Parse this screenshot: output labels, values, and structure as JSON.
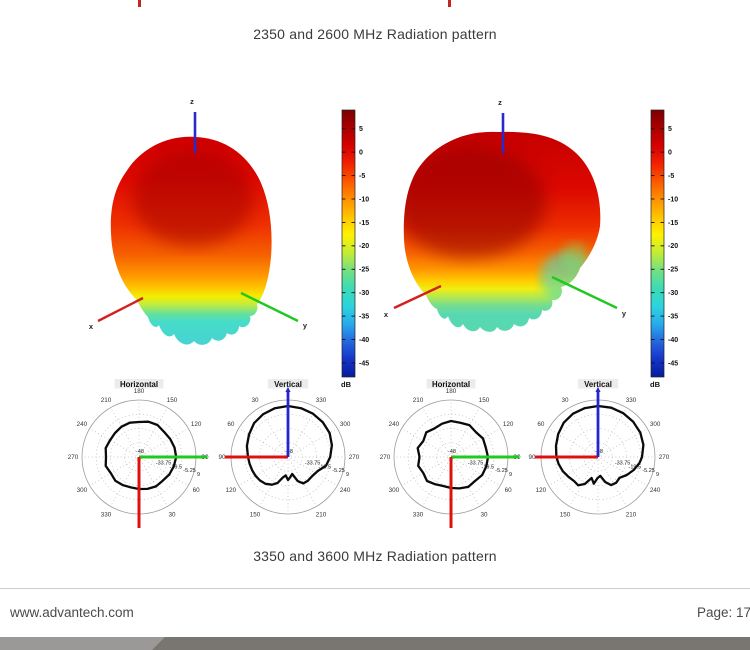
{
  "captions": {
    "top": "2350 and 2600 MHz Radiation pattern",
    "bottom": "3350 and 3600 MHz Radiation pattern"
  },
  "footer": {
    "website": "www.advantech.com",
    "page": "Page: 17"
  },
  "colors": {
    "tick_red": "#c42626",
    "bar_light": "#9b9998",
    "bar_dark": "#797671",
    "axis_x_red": "#d42020",
    "axis_y_green": "#22c822",
    "axis_z_blue": "#2a2ac8"
  },
  "chart_data": {
    "type": "radiation-pattern-figure",
    "surface_plots": [
      {
        "name": "3D radiation pattern left",
        "axis_labels": {
          "x": "x",
          "y": "y",
          "z": "z"
        }
      },
      {
        "name": "3D radiation pattern right",
        "axis_labels": {
          "x": "x",
          "y": "y",
          "z": "z"
        }
      }
    ],
    "colorbar": {
      "unit": "dB",
      "vmax": 9,
      "vmin": -48,
      "ticks": [
        5,
        0,
        -5,
        -10,
        -15,
        -20,
        -25,
        -30,
        -35,
        -40,
        -45
      ],
      "colors": [
        "#7c0000",
        "#aa0000",
        "#d60000",
        "#f22000",
        "#fb5800",
        "#ff9000",
        "#ffc400",
        "#fff200",
        "#c4ec34",
        "#74e080",
        "#3cdcb4",
        "#2cd4dc",
        "#28acec",
        "#2468dc",
        "#1634c8",
        "#041c9c"
      ]
    },
    "polar_plots": [
      {
        "title": "Horizontal",
        "orientation": "h",
        "rmin": -48,
        "rmax": 9,
        "rtick_labels": [
          "-48",
          "-33.75",
          "-19.5",
          "-5.25",
          "9"
        ],
        "angle_labels": [
          {
            "angle": 180,
            "label": "180"
          },
          {
            "angle": 150,
            "label": "150"
          },
          {
            "angle": 120,
            "label": "120"
          },
          {
            "angle": 90,
            "label": "90"
          },
          {
            "angle": 60,
            "label": "60"
          },
          {
            "angle": 30,
            "label": "30"
          },
          {
            "angle": 330,
            "label": "330"
          },
          {
            "angle": 300,
            "label": "300"
          },
          {
            "angle": 270,
            "label": "270"
          },
          {
            "angle": 240,
            "label": "240"
          },
          {
            "angle": 210,
            "label": "210"
          }
        ],
        "series": {
          "angle_deg": [
            0,
            15,
            30,
            45,
            60,
            75,
            90,
            105,
            120,
            135,
            150,
            165,
            180,
            195,
            210,
            225,
            240,
            255,
            270,
            285,
            300,
            315,
            330,
            345
          ],
          "db": [
            -16,
            -15,
            -14,
            -14.5,
            -13,
            -12,
            -10.8,
            -11.2,
            -12,
            -12.5,
            -11,
            -11.5,
            -13,
            -12.5,
            -13,
            -14,
            -14.5,
            -13.5,
            -15,
            -13.5,
            -15.5,
            -14.5,
            -15.5,
            -16.5
          ]
        }
      },
      {
        "title": "Vertical",
        "orientation": "v",
        "rmin": -48,
        "rmax": 9,
        "rtick_labels": [
          "-48",
          "-33.75",
          "-19.5",
          "-5.25",
          "9"
        ],
        "angle_labels": [
          {
            "angle": 330,
            "label": "330"
          },
          {
            "angle": 300,
            "label": "300"
          },
          {
            "angle": 270,
            "label": "270"
          },
          {
            "angle": 240,
            "label": "240"
          },
          {
            "angle": 210,
            "label": "210"
          },
          {
            "angle": 150,
            "label": "150"
          },
          {
            "angle": 120,
            "label": "120"
          },
          {
            "angle": 90,
            "label": "90"
          },
          {
            "angle": 60,
            "label": "60"
          },
          {
            "angle": 30,
            "label": "30"
          }
        ],
        "series": {
          "angle_deg": [
            0,
            15,
            30,
            45,
            60,
            75,
            90,
            100,
            110,
            120,
            130,
            140,
            150,
            158,
            166,
            173,
            180,
            187,
            194,
            202,
            210,
            220,
            232,
            245,
            257,
            270,
            285,
            300,
            315,
            330,
            345
          ],
          "db": [
            3,
            2.5,
            1.5,
            0,
            -3,
            -5.5,
            -8,
            -9,
            -9.8,
            -10.5,
            -11.5,
            -13,
            -16,
            -20,
            -27,
            -29.5,
            -25,
            -28,
            -30.5,
            -22,
            -17.5,
            -17,
            -17.2,
            -15,
            -9,
            -5.8,
            -2.5,
            0,
            1.2,
            2,
            2.5
          ]
        }
      },
      {
        "title": "Horizontal",
        "orientation": "h",
        "rmin": -48,
        "rmax": 9,
        "rtick_labels": [
          "-48",
          "-33.75",
          "-19.5",
          "-5.25",
          "9"
        ],
        "angle_labels": [
          {
            "angle": 180,
            "label": "180"
          },
          {
            "angle": 150,
            "label": "150"
          },
          {
            "angle": 120,
            "label": "120"
          },
          {
            "angle": 90,
            "label": "90"
          },
          {
            "angle": 60,
            "label": "60"
          },
          {
            "angle": 30,
            "label": "30"
          },
          {
            "angle": 330,
            "label": "330"
          },
          {
            "angle": 300,
            "label": "300"
          },
          {
            "angle": 270,
            "label": "270"
          },
          {
            "angle": 240,
            "label": "240"
          },
          {
            "angle": 210,
            "label": "210"
          }
        ],
        "series": {
          "angle_deg": [
            0,
            15,
            30,
            45,
            60,
            75,
            90,
            105,
            120,
            135,
            150,
            165,
            180,
            195,
            210,
            225,
            240,
            255,
            270,
            285,
            300,
            315,
            330,
            345
          ],
          "db": [
            -17,
            -15.5,
            -13.5,
            -14,
            -12,
            -11.5,
            -11,
            -12,
            -11,
            -12.8,
            -11.2,
            -12.5,
            -12,
            -13.5,
            -15,
            -13,
            -16,
            -13.5,
            -16.5,
            -14,
            -16,
            -14,
            -16.5,
            -18
          ]
        }
      },
      {
        "title": "Vertical",
        "orientation": "v",
        "rmin": -48,
        "rmax": 9,
        "rtick_labels": [
          "-48",
          "-33.75",
          "-19.5",
          "-5.25",
          "9"
        ],
        "angle_labels": [
          {
            "angle": 330,
            "label": "330"
          },
          {
            "angle": 300,
            "label": "300"
          },
          {
            "angle": 270,
            "label": "270"
          },
          {
            "angle": 240,
            "label": "240"
          },
          {
            "angle": 210,
            "label": "210"
          },
          {
            "angle": 150,
            "label": "150"
          },
          {
            "angle": 120,
            "label": "120"
          },
          {
            "angle": 90,
            "label": "90"
          },
          {
            "angle": 60,
            "label": "60"
          },
          {
            "angle": 30,
            "label": "30"
          }
        ],
        "series": {
          "angle_deg": [
            0,
            15,
            30,
            45,
            60,
            75,
            90,
            100,
            112,
            124,
            135,
            145,
            154,
            163,
            171,
            179,
            187,
            196,
            205,
            215,
            226,
            238,
            250,
            262,
            270,
            285,
            300,
            315,
            330,
            345
          ],
          "db": [
            3,
            2.6,
            2,
            0.5,
            -2,
            -4.5,
            -6.4,
            -8,
            -10,
            -12.5,
            -14,
            -13.5,
            -18,
            -26,
            -21,
            -27,
            -29,
            -22,
            -17,
            -16.5,
            -18,
            -14,
            -10,
            -6,
            -4,
            -1,
            0.8,
            1.8,
            2.6,
            3
          ]
        }
      }
    ]
  }
}
